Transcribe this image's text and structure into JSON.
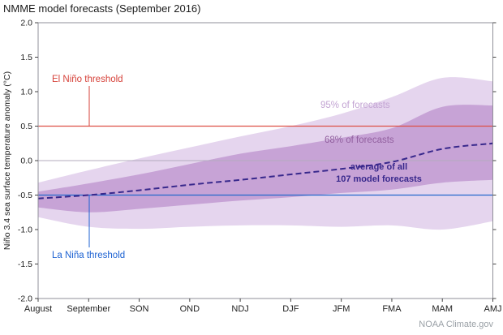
{
  "title": "NMME model forecasts (September 2016)",
  "footer": "NOAA Climate.gov",
  "chart_data": {
    "type": "area",
    "title": "NMME model forecasts (September 2016)",
    "x_labels": [
      "August",
      "September",
      "SON",
      "OND",
      "NDJ",
      "DJF",
      "JFM",
      "FMA",
      "MAM",
      "AMJ"
    ],
    "ylabel": "Niño 3.4 sea surface temperature anomaly (°C)",
    "ylim": [
      -2.0,
      2.0
    ],
    "ytick_step": 0.5,
    "grid": false,
    "bands": [
      {
        "name": "95% of forecasts",
        "color": "#e5d5ee",
        "upper": [
          -0.32,
          -0.14,
          0.03,
          0.19,
          0.35,
          0.5,
          0.68,
          0.92,
          1.2,
          1.15
        ],
        "lower": [
          -0.82,
          -0.96,
          -0.99,
          -0.96,
          -0.94,
          -0.94,
          -0.96,
          -0.94,
          -1.0,
          -0.88
        ]
      },
      {
        "name": "68% of forecasts",
        "color": "#c7a3d6",
        "upper": [
          -0.45,
          -0.33,
          -0.2,
          -0.05,
          0.1,
          0.21,
          0.33,
          0.47,
          0.78,
          0.8
        ],
        "lower": [
          -0.68,
          -0.75,
          -0.7,
          -0.64,
          -0.58,
          -0.53,
          -0.47,
          -0.42,
          -0.32,
          -0.28
        ]
      }
    ],
    "average_line": {
      "name": "average of all 107 model forecasts",
      "color": "#38288c",
      "values": [
        -0.55,
        -0.5,
        -0.43,
        -0.35,
        -0.28,
        -0.2,
        -0.12,
        -0.02,
        0.17,
        0.25
      ]
    },
    "reference_lines": [
      {
        "name": "El Niño threshold",
        "value": 0.5,
        "color": "#dd5147"
      },
      {
        "name": "zero line",
        "value": 0.0,
        "color": "#b3abbe"
      },
      {
        "name": "La Niña threshold",
        "value": -0.5,
        "color": "#2468cc"
      }
    ]
  },
  "annotations": {
    "el_nino_label": "El Niño threshold",
    "la_nina_label": "La Niña threshold",
    "band95_label": "95% of forecasts",
    "band68_label": "68% of forecasts",
    "average_label_line1": "average of all",
    "average_label_line2": "107 model forecasts"
  },
  "colors": {
    "el_nino_text": "#d6423a",
    "la_nina_text": "#1d62d2",
    "band95_text": "#c3a4d3",
    "band68_text": "#92609f",
    "average_text": "#38288c"
  }
}
